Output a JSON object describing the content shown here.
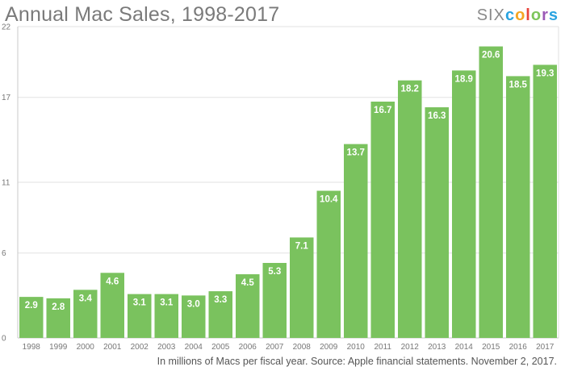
{
  "header": {
    "brand": {
      "six": "SIX",
      "colors": [
        "c",
        "o",
        "l",
        "o",
        "r",
        "s"
      ]
    }
  },
  "footer": {
    "caption": "In millions of Macs per fiscal year. Source: Apple financial statements. November 2, 2017."
  },
  "colors": {
    "bar": "#7ac25e",
    "grid": "#e2e2e2",
    "axis": "#c8c8c8"
  },
  "chart_data": {
    "type": "bar",
    "title": "Annual Mac Sales, 1998-2017",
    "xlabel": "",
    "ylabel": "",
    "ylim": [
      0,
      22
    ],
    "yticks": [
      0,
      6,
      11,
      17,
      22
    ],
    "grid": true,
    "categories": [
      "1998",
      "1999",
      "2000",
      "2001",
      "2002",
      "2003",
      "2004",
      "2005",
      "2006",
      "2007",
      "2008",
      "2009",
      "2010",
      "2011",
      "2012",
      "2013",
      "2014",
      "2015",
      "2016",
      "2017"
    ],
    "values": [
      2.9,
      2.8,
      3.4,
      4.6,
      3.1,
      3.1,
      3.0,
      3.3,
      4.5,
      5.3,
      7.1,
      10.4,
      13.7,
      16.7,
      18.2,
      16.3,
      18.9,
      20.6,
      18.5,
      19.3
    ],
    "value_labels": [
      "2.9",
      "2.8",
      "3.4",
      "4.6",
      "3.1",
      "3.1",
      "3.0",
      "3.3",
      "4.5",
      "5.3",
      "7.1",
      "10.4",
      "13.7",
      "16.7",
      "18.2",
      "16.3",
      "18.9",
      "20.6",
      "18.5",
      "19.3"
    ]
  }
}
